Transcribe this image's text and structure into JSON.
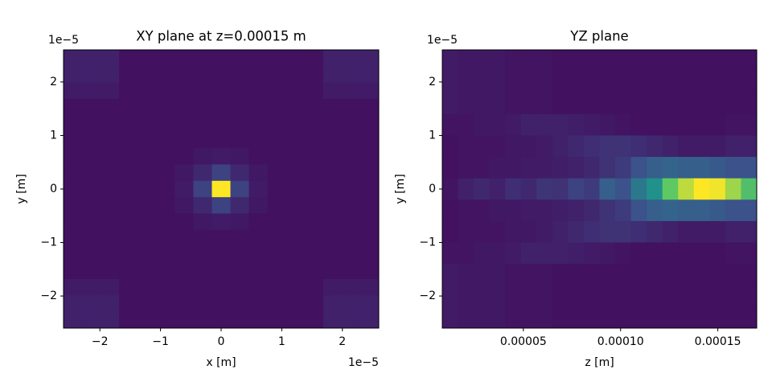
{
  "chart_data": [
    {
      "type": "heatmap",
      "title": "XY plane at z=0.00015 m",
      "xlabel": "x [m]",
      "ylabel": "y [m]",
      "colormap": "viridis",
      "xlim": [
        -2.6e-05,
        2.6e-05
      ],
      "ylim": [
        -2.6e-05,
        2.6e-05
      ],
      "xticks": [
        {
          "value": -2e-05,
          "label": "−2"
        },
        {
          "value": -1e-05,
          "label": "−1"
        },
        {
          "value": 0,
          "label": "0"
        },
        {
          "value": 1e-05,
          "label": "1"
        },
        {
          "value": 2e-05,
          "label": "2"
        }
      ],
      "yticks": [
        {
          "value": -2e-05,
          "label": "−2"
        },
        {
          "value": -1e-05,
          "label": "−1"
        },
        {
          "value": 0,
          "label": "0"
        },
        {
          "value": 1e-05,
          "label": "1"
        },
        {
          "value": 2e-05,
          "label": "2"
        }
      ],
      "x_offset_label": "1e−5",
      "y_offset_label": "1e−5",
      "z": [
        [
          0.1,
          0.1,
          0.1,
          0.05,
          0.05,
          0.05,
          0.05,
          0.05,
          0.05,
          0.05,
          0.05,
          0.05,
          0.05,
          0.05,
          0.1,
          0.1,
          0.1
        ],
        [
          0.1,
          0.1,
          0.1,
          0.05,
          0.05,
          0.05,
          0.05,
          0.05,
          0.05,
          0.05,
          0.05,
          0.05,
          0.05,
          0.05,
          0.1,
          0.1,
          0.1
        ],
        [
          0.08,
          0.08,
          0.08,
          0.05,
          0.05,
          0.05,
          0.05,
          0.05,
          0.05,
          0.05,
          0.05,
          0.05,
          0.05,
          0.05,
          0.08,
          0.08,
          0.08
        ],
        [
          0.05,
          0.05,
          0.05,
          0.05,
          0.05,
          0.05,
          0.05,
          0.05,
          0.05,
          0.05,
          0.05,
          0.05,
          0.05,
          0.05,
          0.05,
          0.05,
          0.05
        ],
        [
          0.05,
          0.05,
          0.05,
          0.05,
          0.05,
          0.05,
          0.05,
          0.05,
          0.05,
          0.05,
          0.05,
          0.05,
          0.05,
          0.05,
          0.05,
          0.05,
          0.05
        ],
        [
          0.05,
          0.05,
          0.05,
          0.05,
          0.05,
          0.05,
          0.05,
          0.05,
          0.05,
          0.05,
          0.05,
          0.05,
          0.05,
          0.05,
          0.05,
          0.05,
          0.05
        ],
        [
          0.05,
          0.05,
          0.05,
          0.05,
          0.05,
          0.05,
          0.05,
          0.07,
          0.08,
          0.07,
          0.05,
          0.05,
          0.05,
          0.05,
          0.05,
          0.05,
          0.05
        ],
        [
          0.05,
          0.05,
          0.05,
          0.05,
          0.05,
          0.05,
          0.07,
          0.12,
          0.2,
          0.12,
          0.07,
          0.05,
          0.05,
          0.05,
          0.05,
          0.05,
          0.05
        ],
        [
          0.05,
          0.05,
          0.05,
          0.05,
          0.05,
          0.05,
          0.08,
          0.2,
          1,
          0.2,
          0.08,
          0.05,
          0.05,
          0.05,
          0.05,
          0.05,
          0.05
        ],
        [
          0.05,
          0.05,
          0.05,
          0.05,
          0.05,
          0.05,
          0.07,
          0.12,
          0.2,
          0.12,
          0.07,
          0.05,
          0.05,
          0.05,
          0.05,
          0.05,
          0.05
        ],
        [
          0.05,
          0.05,
          0.05,
          0.05,
          0.05,
          0.05,
          0.05,
          0.07,
          0.08,
          0.07,
          0.05,
          0.05,
          0.05,
          0.05,
          0.05,
          0.05,
          0.05
        ],
        [
          0.05,
          0.05,
          0.05,
          0.05,
          0.05,
          0.05,
          0.05,
          0.05,
          0.05,
          0.05,
          0.05,
          0.05,
          0.05,
          0.05,
          0.05,
          0.05,
          0.05
        ],
        [
          0.05,
          0.05,
          0.05,
          0.05,
          0.05,
          0.05,
          0.05,
          0.05,
          0.05,
          0.05,
          0.05,
          0.05,
          0.05,
          0.05,
          0.05,
          0.05,
          0.05
        ],
        [
          0.05,
          0.05,
          0.05,
          0.05,
          0.05,
          0.05,
          0.05,
          0.05,
          0.05,
          0.05,
          0.05,
          0.05,
          0.05,
          0.05,
          0.05,
          0.05,
          0.05
        ],
        [
          0.08,
          0.08,
          0.08,
          0.05,
          0.05,
          0.05,
          0.05,
          0.05,
          0.05,
          0.05,
          0.05,
          0.05,
          0.05,
          0.05,
          0.08,
          0.08,
          0.08
        ],
        [
          0.1,
          0.1,
          0.1,
          0.05,
          0.05,
          0.05,
          0.05,
          0.05,
          0.05,
          0.05,
          0.05,
          0.05,
          0.05,
          0.05,
          0.1,
          0.1,
          0.1
        ],
        [
          0.1,
          0.1,
          0.1,
          0.05,
          0.05,
          0.05,
          0.05,
          0.05,
          0.05,
          0.05,
          0.05,
          0.05,
          0.05,
          0.05,
          0.1,
          0.1,
          0.1
        ]
      ]
    },
    {
      "type": "heatmap",
      "title": "YZ plane",
      "xlabel": "z [m]",
      "ylabel": "y [m]",
      "colormap": "viridis",
      "xlim": [
        8.3e-06,
        0.00017
      ],
      "ylim": [
        -2.6e-05,
        2.6e-05
      ],
      "xticks": [
        {
          "value": 5e-05,
          "label": "0.00005"
        },
        {
          "value": 0.0001,
          "label": "0.00010"
        },
        {
          "value": 0.00015,
          "label": "0.00015"
        }
      ],
      "yticks": [
        {
          "value": -2e-05,
          "label": "−2"
        },
        {
          "value": -1e-05,
          "label": "−1"
        },
        {
          "value": 0,
          "label": "0"
        },
        {
          "value": 1e-05,
          "label": "1"
        },
        {
          "value": 2e-05,
          "label": "2"
        }
      ],
      "y_offset_label": "1e−5",
      "z": [
        [
          0.08,
          0.07,
          0.07,
          0.07,
          0.06,
          0.06,
          0.06,
          0.05,
          0.05,
          0.05,
          0.05,
          0.05,
          0.05,
          0.05,
          0.05,
          0.05,
          0.05,
          0.05,
          0.05,
          0.05
        ],
        [
          0.08,
          0.07,
          0.07,
          0.07,
          0.06,
          0.06,
          0.06,
          0.05,
          0.05,
          0.05,
          0.05,
          0.05,
          0.05,
          0.05,
          0.05,
          0.05,
          0.05,
          0.05,
          0.05,
          0.05
        ],
        [
          0.08,
          0.07,
          0.07,
          0.07,
          0.06,
          0.06,
          0.06,
          0.05,
          0.05,
          0.05,
          0.05,
          0.05,
          0.05,
          0.05,
          0.05,
          0.05,
          0.05,
          0.05,
          0.05,
          0.05
        ],
        [
          0.06,
          0.06,
          0.07,
          0.07,
          0.08,
          0.1,
          0.1,
          0.1,
          0.09,
          0.08,
          0.07,
          0.06,
          0.05,
          0.05,
          0.05,
          0.05,
          0.05,
          0.05,
          0.06,
          0.06
        ],
        [
          0.05,
          0.06,
          0.06,
          0.06,
          0.07,
          0.07,
          0.08,
          0.1,
          0.12,
          0.14,
          0.15,
          0.15,
          0.14,
          0.12,
          0.1,
          0.08,
          0.08,
          0.08,
          0.1,
          0.1
        ],
        [
          0.05,
          0.06,
          0.06,
          0.07,
          0.07,
          0.08,
          0.08,
          0.09,
          0.1,
          0.12,
          0.15,
          0.18,
          0.25,
          0.3,
          0.32,
          0.3,
          0.3,
          0.28,
          0.25,
          0.25
        ],
        [
          0.06,
          0.1,
          0.12,
          0.1,
          0.14,
          0.12,
          0.16,
          0.15,
          0.2,
          0.18,
          0.3,
          0.25,
          0.4,
          0.5,
          0.75,
          0.9,
          1,
          0.98,
          0.85,
          0.7
        ],
        [
          0.05,
          0.06,
          0.06,
          0.07,
          0.07,
          0.08,
          0.08,
          0.09,
          0.1,
          0.12,
          0.15,
          0.18,
          0.25,
          0.3,
          0.32,
          0.3,
          0.3,
          0.28,
          0.25,
          0.25
        ],
        [
          0.05,
          0.06,
          0.06,
          0.06,
          0.07,
          0.07,
          0.08,
          0.1,
          0.12,
          0.14,
          0.15,
          0.15,
          0.14,
          0.12,
          0.1,
          0.08,
          0.08,
          0.08,
          0.1,
          0.1
        ],
        [
          0.06,
          0.06,
          0.07,
          0.07,
          0.08,
          0.1,
          0.1,
          0.1,
          0.09,
          0.08,
          0.07,
          0.06,
          0.05,
          0.05,
          0.05,
          0.05,
          0.05,
          0.05,
          0.06,
          0.06
        ],
        [
          0.08,
          0.07,
          0.07,
          0.07,
          0.06,
          0.06,
          0.06,
          0.05,
          0.05,
          0.05,
          0.05,
          0.05,
          0.05,
          0.05,
          0.05,
          0.05,
          0.05,
          0.05,
          0.05,
          0.05
        ],
        [
          0.08,
          0.07,
          0.07,
          0.07,
          0.06,
          0.06,
          0.06,
          0.05,
          0.05,
          0.05,
          0.05,
          0.05,
          0.05,
          0.05,
          0.05,
          0.05,
          0.05,
          0.05,
          0.05,
          0.05
        ],
        [
          0.08,
          0.07,
          0.07,
          0.07,
          0.06,
          0.06,
          0.06,
          0.05,
          0.05,
          0.05,
          0.05,
          0.05,
          0.05,
          0.05,
          0.05,
          0.05,
          0.05,
          0.05,
          0.05,
          0.05
        ]
      ]
    }
  ]
}
